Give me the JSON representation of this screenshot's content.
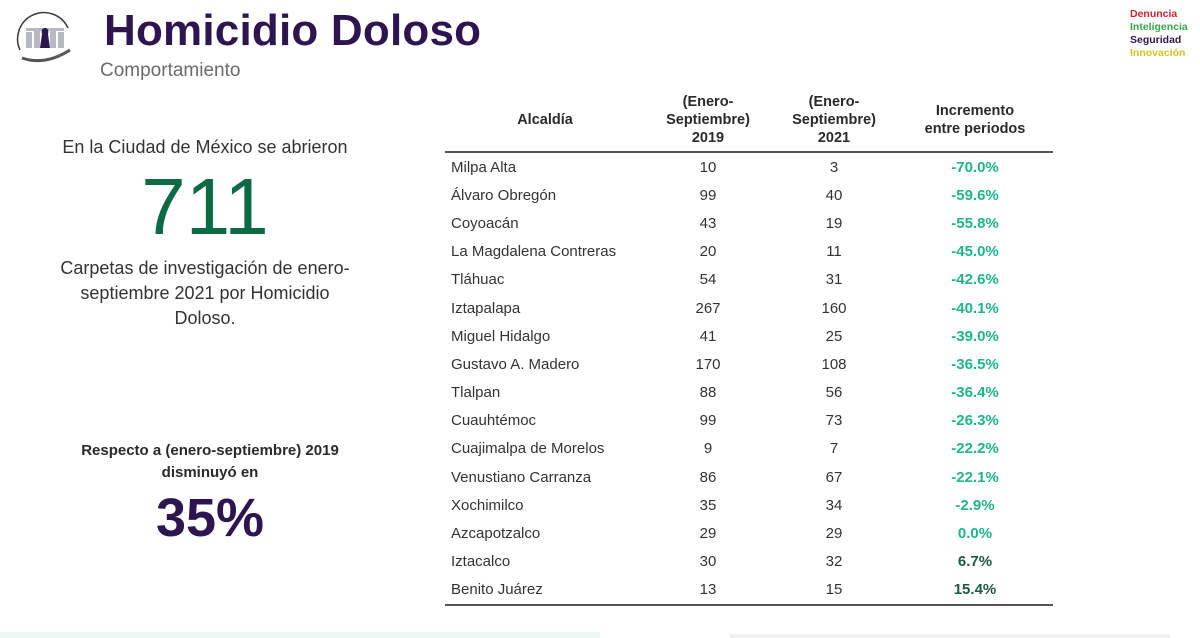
{
  "header": {
    "title": "Homicidio Doloso",
    "subtitle": "Comportamiento",
    "logo_left": "Ciudad de México",
    "logo_right": [
      "Denuncia",
      "Inteligencia",
      "Seguridad",
      "Innovación"
    ]
  },
  "summary": {
    "intro": "En la Ciudad de México se abrieron",
    "big_number": "711",
    "caption": "Carpetas de investigación de enero-septiembre 2021 por Homicidio Doloso.",
    "compare_text": "Respecto a (enero-septiembre) 2019 disminuyó en",
    "percent": "35%"
  },
  "colors": {
    "title": "#2d1650",
    "big_number": "#0c6b45",
    "negative_pct": "#1fb58a",
    "positive_pct": "#1e5a3e"
  },
  "table": {
    "headers": {
      "name": "Alcaldía",
      "y2019_line1": "(Enero-",
      "y2019_line2": "Septiembre)",
      "y2019_line3": "2019",
      "y2021_line1": "(Enero-",
      "y2021_line2": "Septiembre)",
      "y2021_line3": "2021",
      "inc_line1": "Incremento",
      "inc_line2": "entre periodos"
    },
    "rows": [
      {
        "name": "Milpa Alta",
        "y2019": "10",
        "y2021": "3",
        "inc": "-70.0%"
      },
      {
        "name": "Álvaro Obregón",
        "y2019": "99",
        "y2021": "40",
        "inc": "-59.6%"
      },
      {
        "name": "Coyoacán",
        "y2019": "43",
        "y2021": "19",
        "inc": "-55.8%"
      },
      {
        "name": "La Magdalena Contreras",
        "y2019": "20",
        "y2021": "11",
        "inc": "-45.0%"
      },
      {
        "name": "Tláhuac",
        "y2019": "54",
        "y2021": "31",
        "inc": "-42.6%"
      },
      {
        "name": "Iztapalapa",
        "y2019": "267",
        "y2021": "160",
        "inc": "-40.1%"
      },
      {
        "name": "Miguel Hidalgo",
        "y2019": "41",
        "y2021": "25",
        "inc": "-39.0%"
      },
      {
        "name": "Gustavo A. Madero",
        "y2019": "170",
        "y2021": "108",
        "inc": "-36.5%"
      },
      {
        "name": "Tlalpan",
        "y2019": "88",
        "y2021": "56",
        "inc": "-36.4%"
      },
      {
        "name": "Cuauhtémoc",
        "y2019": "99",
        "y2021": "73",
        "inc": "-26.3%"
      },
      {
        "name": "Cuajimalpa de Morelos",
        "y2019": "9",
        "y2021": "7",
        "inc": "-22.2%"
      },
      {
        "name": "Venustiano Carranza",
        "y2019": "86",
        "y2021": "67",
        "inc": "-22.1%"
      },
      {
        "name": "Xochimilco",
        "y2019": "35",
        "y2021": "34",
        "inc": "-2.9%"
      },
      {
        "name": "Azcapotzalco",
        "y2019": "29",
        "y2021": "29",
        "inc": "0.0%"
      },
      {
        "name": "Iztacalco",
        "y2019": "30",
        "y2021": "32",
        "inc": "6.7%"
      },
      {
        "name": "Benito Juárez",
        "y2019": "13",
        "y2021": "15",
        "inc": "15.4%"
      }
    ]
  }
}
